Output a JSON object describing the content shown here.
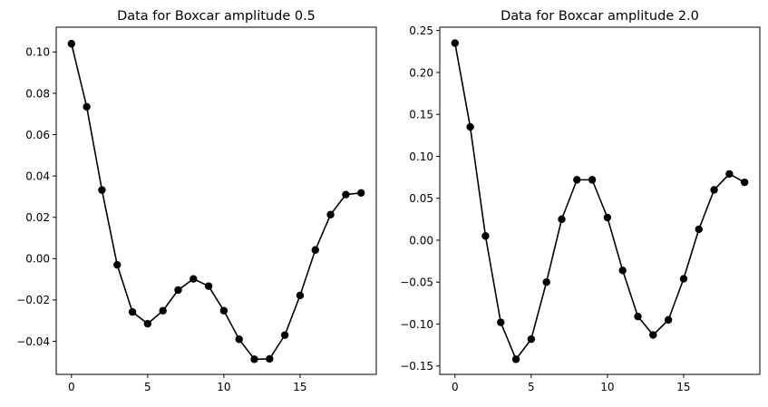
{
  "chart_data": [
    {
      "type": "line",
      "title": "Data for Boxcar amplitude 0.5",
      "xlabel": "",
      "ylabel": "",
      "xlim": [
        -1,
        20
      ],
      "ylim": [
        -0.056,
        0.112
      ],
      "xticks": [
        0,
        5,
        10,
        15
      ],
      "yticks": [
        -0.04,
        -0.02,
        0.0,
        0.02,
        0.04,
        0.06,
        0.08,
        0.1
      ],
      "ytick_labels": [
        "−0.04",
        "−0.02",
        "0.00",
        "0.02",
        "0.04",
        "0.06",
        "0.08",
        "0.10"
      ],
      "grid": false,
      "marker": "circle",
      "color": "#000000",
      "x": [
        0,
        1,
        2,
        3,
        4,
        5,
        6,
        7,
        8,
        9,
        10,
        11,
        12,
        13,
        14,
        15,
        16,
        17,
        18,
        19
      ],
      "y": [
        0.104,
        0.0735,
        0.0332,
        -0.003,
        -0.0258,
        -0.0315,
        -0.0252,
        -0.0152,
        -0.0098,
        -0.0133,
        -0.0252,
        -0.039,
        -0.0487,
        -0.0485,
        -0.037,
        -0.0178,
        0.0042,
        0.0213,
        0.031,
        0.0318
      ]
    },
    {
      "type": "line",
      "title": "Data for Boxcar amplitude 2.0",
      "xlabel": "",
      "ylabel": "",
      "xlim": [
        -1,
        20
      ],
      "ylim": [
        -0.16,
        0.254
      ],
      "xticks": [
        0,
        5,
        10,
        15
      ],
      "yticks": [
        -0.15,
        -0.1,
        -0.05,
        0.0,
        0.05,
        0.1,
        0.15,
        0.2,
        0.25
      ],
      "ytick_labels": [
        "−0.15",
        "−0.10",
        "−0.05",
        "0.00",
        "0.05",
        "0.10",
        "0.15",
        "0.20",
        "0.25"
      ],
      "grid": false,
      "marker": "circle",
      "color": "#000000",
      "x": [
        0,
        1,
        2,
        3,
        4,
        5,
        6,
        7,
        8,
        9,
        10,
        11,
        12,
        13,
        14,
        15,
        16,
        17,
        18,
        19
      ],
      "y": [
        0.235,
        0.135,
        0.005,
        -0.098,
        -0.142,
        -0.118,
        -0.05,
        0.025,
        0.072,
        0.072,
        0.027,
        -0.036,
        -0.091,
        -0.113,
        -0.095,
        -0.046,
        0.013,
        0.06,
        0.079,
        0.069
      ]
    }
  ]
}
